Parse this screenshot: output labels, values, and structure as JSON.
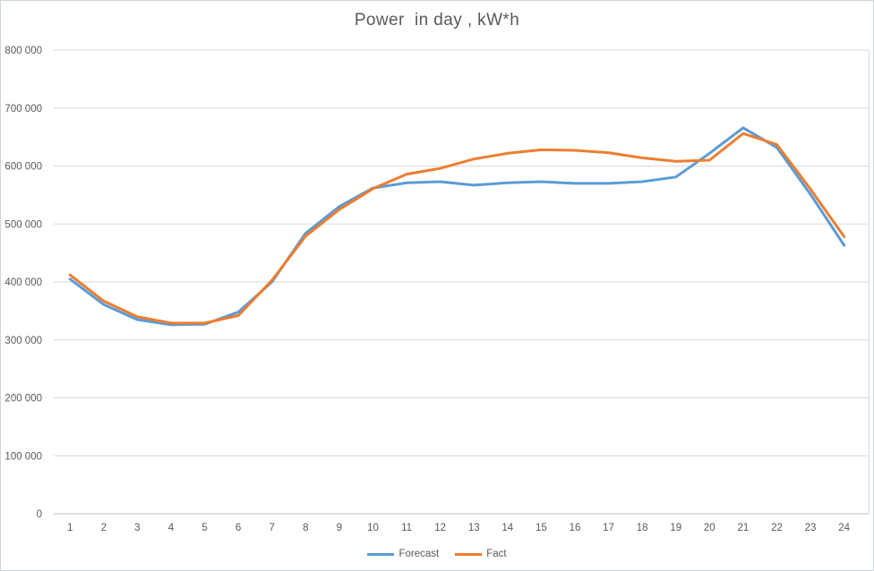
{
  "window": {
    "background": "#ffffff",
    "border_color": "#ccd6e0"
  },
  "chart_data": {
    "type": "line",
    "title": "Power  in day , kW*h",
    "title_color": "#595959",
    "xlabel": "",
    "ylabel": "",
    "x": [
      1,
      2,
      3,
      4,
      5,
      6,
      7,
      8,
      9,
      10,
      11,
      12,
      13,
      14,
      15,
      16,
      17,
      18,
      19,
      20,
      21,
      22,
      23,
      24
    ],
    "series": [
      {
        "name": "Forecast",
        "color": "#5b9bd5",
        "values": [
          405000,
          361000,
          335000,
          326000,
          327000,
          348000,
          400000,
          484000,
          530000,
          562000,
          571000,
          573000,
          567000,
          571000,
          573000,
          570000,
          570000,
          573000,
          581000,
          622000,
          666000,
          632000,
          551000,
          463000
        ]
      },
      {
        "name": "Fact",
        "color": "#ed7d31",
        "values": [
          412000,
          367000,
          340000,
          329000,
          329000,
          342000,
          403000,
          479000,
          525000,
          561000,
          586000,
          596000,
          612000,
          622000,
          628000,
          627000,
          623000,
          614000,
          608000,
          610000,
          656000,
          637000,
          560000,
          478000
        ]
      }
    ],
    "ylim": [
      0,
      800000
    ],
    "ytick_step": 100000,
    "ytick_values": [
      0,
      100000,
      200000,
      300000,
      400000,
      500000,
      600000,
      700000,
      800000
    ],
    "ytick_labels": [
      "0",
      "100 000",
      "200 000",
      "300 000",
      "400 000",
      "500 000",
      "600 000",
      "700 000",
      "800 000"
    ],
    "grid": true,
    "grid_color": "#d9d9d9",
    "axis_color": "#bfbfbf",
    "text_color": "#595959",
    "legend_position": "bottom"
  }
}
